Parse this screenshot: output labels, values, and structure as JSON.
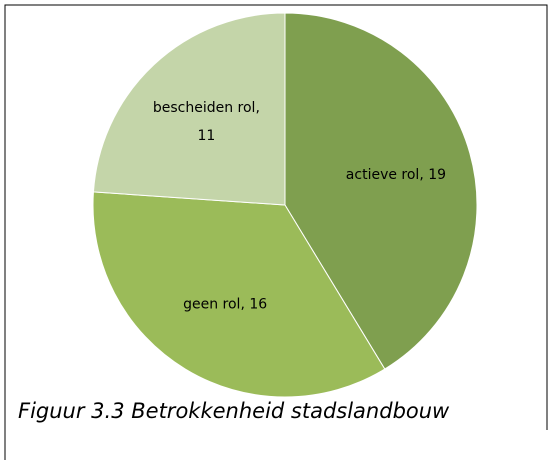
{
  "chart_data": {
    "type": "pie",
    "values": [
      19,
      16,
      11
    ],
    "value_labels": [
      "actieve rol, 19",
      "geen rol, 16",
      "bescheiden rol,\n11"
    ],
    "colors": [
      "#7f9f4f",
      "#9bbb59",
      "#c4d5a9"
    ],
    "caption": "Figuur 3.3 Betrokkenheid stadslandbouw"
  }
}
